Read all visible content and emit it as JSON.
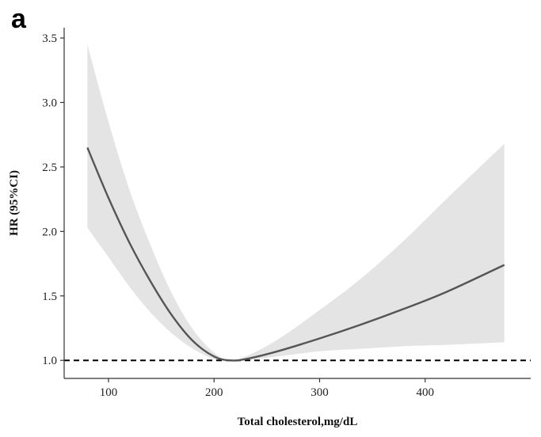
{
  "panel_label": "a",
  "chart_data": {
    "type": "line",
    "title": "",
    "xlabel": "Total cholesterol,mg/dL",
    "ylabel": "HR (95%CI)",
    "xlim": [
      58,
      500
    ],
    "ylim": [
      0.86,
      3.58
    ],
    "x_ticks": [
      100,
      200,
      300,
      400
    ],
    "y_ticks": [
      1.0,
      1.5,
      2.0,
      2.5,
      3.0,
      3.5
    ],
    "y_tick_labels": [
      "1.0",
      "1.5",
      "2.0",
      "2.5",
      "3.0",
      "3.5"
    ],
    "reference_line": {
      "y": 1.0,
      "style": "dashed"
    },
    "grid": false,
    "colors": {
      "line": "#555555",
      "band": "#e4e4e4",
      "reference": "#000000"
    },
    "series": [
      {
        "x": [
          80,
          100,
          120,
          140,
          160,
          180,
          200,
          215,
          230,
          260,
          300,
          340,
          380,
          420,
          475
        ],
        "y": [
          2.65,
          2.26,
          1.91,
          1.61,
          1.35,
          1.15,
          1.03,
          1.0,
          1.01,
          1.07,
          1.17,
          1.28,
          1.4,
          1.53,
          1.74
        ],
        "lower": [
          2.03,
          1.8,
          1.57,
          1.37,
          1.21,
          1.09,
          1.01,
          1.0,
          1.0,
          1.03,
          1.07,
          1.09,
          1.11,
          1.12,
          1.14
        ],
        "upper": [
          3.45,
          2.85,
          2.32,
          1.89,
          1.52,
          1.24,
          1.06,
          1.0,
          1.03,
          1.16,
          1.39,
          1.64,
          1.93,
          2.25,
          2.68
        ]
      }
    ]
  }
}
